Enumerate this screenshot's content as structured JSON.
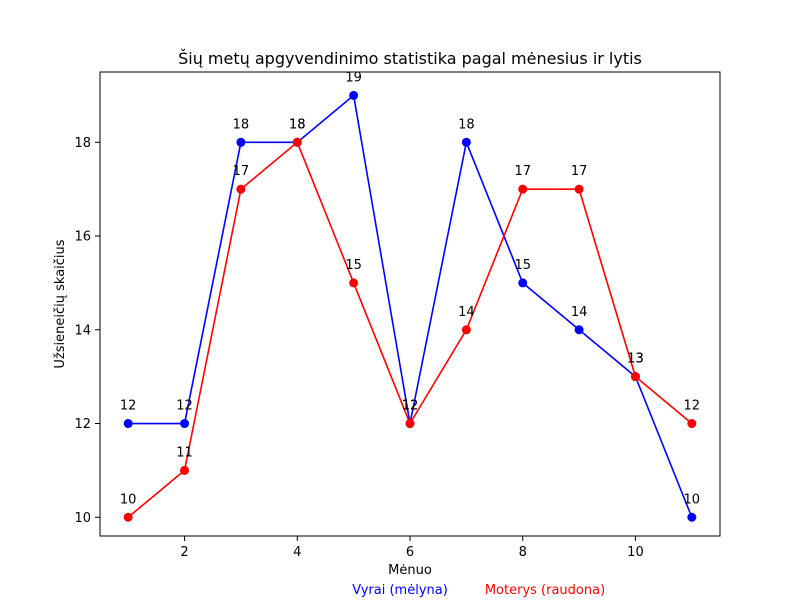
{
  "chart_data": {
    "type": "line",
    "title": "Šių metų apgyvendinimo statistika pagal mėnesius ir lytis",
    "xlabel": "Mėnuo",
    "ylabel": "Užsieneičių skaičius",
    "x": [
      1,
      2,
      3,
      4,
      5,
      6,
      7,
      8,
      9,
      10,
      11
    ],
    "xlim": [
      0.5,
      11.5
    ],
    "ylim": [
      9.6,
      19.5
    ],
    "xticks": [
      2,
      4,
      6,
      8,
      10
    ],
    "yticks": [
      10,
      12,
      14,
      16,
      18
    ],
    "grid": false,
    "series": [
      {
        "name": "Vyrai (mėlyna)",
        "color": "#0000ff",
        "values": [
          12,
          12,
          18,
          18,
          19,
          12,
          18,
          15,
          14,
          13,
          10
        ]
      },
      {
        "name": "Moterys (raudona)",
        "color": "#ff0000",
        "values": [
          10,
          11,
          17,
          18,
          15,
          12,
          14,
          17,
          17,
          13,
          12
        ]
      }
    ],
    "legend": {
      "placement": "bottom-center",
      "items": [
        "Vyrai (mėlyna)",
        "Moterys (raudona)"
      ]
    }
  }
}
